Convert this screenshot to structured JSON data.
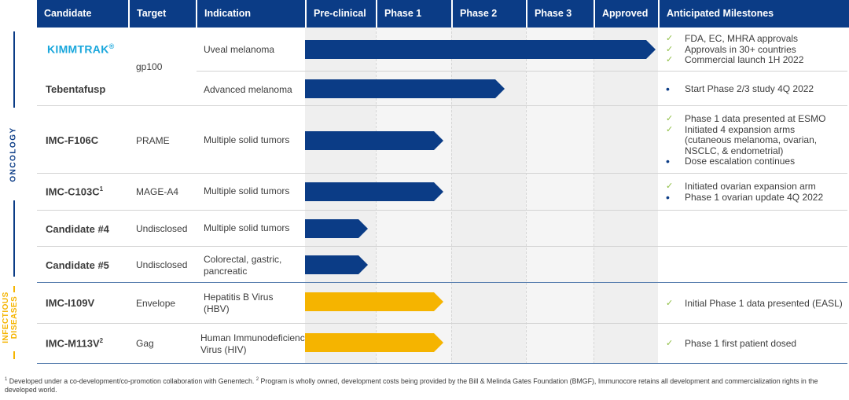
{
  "header": {
    "candidate": "Candidate",
    "target": "Target",
    "indication": "Indication",
    "preclinical": "Pre-clinical",
    "phase1": "Phase 1",
    "phase2": "Phase 2",
    "phase3": "Phase 3",
    "approved": "Approved",
    "milestones": "Anticipated Milestones"
  },
  "sections": {
    "oncology": "ONCOLOGY",
    "infectious_line1": "INFECTIOUS",
    "infectious_line2": "DISEASES"
  },
  "colors": {
    "header_bg": "#0b3c86",
    "oncology_bar": "#0b3c86",
    "infectious_bar": "#f5b400",
    "kimmtrak": "#1aa7dc",
    "check": "#8cbd3f",
    "infectious_label": "#f5b400"
  },
  "rows": [
    {
      "candidate": "KIMMTRAK",
      "candidate_mark": "®",
      "target": "gp100",
      "indication": "Uveal melanoma",
      "stage": "Approved",
      "milestones": [
        {
          "mark": "check-icon",
          "text": "FDA, EC, MHRA approvals"
        },
        {
          "mark": "check-icon",
          "text": "Approvals in 30+ countries"
        },
        {
          "mark": "check-icon",
          "text": "Commercial launch 1H 2022"
        }
      ]
    },
    {
      "candidate": "Tebentafusp",
      "target": "",
      "indication": "Advanced melanoma",
      "stage": "Phase 2",
      "milestones": [
        {
          "mark": "bullet-icon",
          "text": "Start Phase 2/3 study 4Q 2022"
        }
      ]
    },
    {
      "candidate": "IMC-F106C",
      "target": "PRAME",
      "indication": "Multiple solid tumors",
      "stage": "Phase 1",
      "milestones": [
        {
          "mark": "check-icon",
          "text": "Phase 1 data presented at ESMO"
        },
        {
          "mark": "check-icon",
          "text": "Initiated 4 expansion arms"
        },
        {
          "mark": "",
          "text": "(cutaneous melanoma, ovarian,"
        },
        {
          "mark": "",
          "text": "NSCLC, & endometrial)"
        },
        {
          "mark": "bullet-icon",
          "text": "Dose escalation continues"
        }
      ]
    },
    {
      "candidate": "IMC-C103C",
      "candidate_sup": "1",
      "target": "MAGE-A4",
      "indication": "Multiple solid tumors",
      "stage": "Phase 1",
      "milestones": [
        {
          "mark": "check-icon",
          "text": "Initiated ovarian expansion arm"
        },
        {
          "mark": "bullet-icon",
          "text": "Phase 1 ovarian update 4Q 2022"
        }
      ]
    },
    {
      "candidate": "Candidate #4",
      "target": "Undisclosed",
      "indication": "Multiple solid tumors",
      "stage": "Pre-clinical",
      "milestones": []
    },
    {
      "candidate": "Candidate #5",
      "target": "Undisclosed",
      "indication_lines": [
        "Colorectal, gastric,",
        "pancreatic"
      ],
      "stage": "Pre-clinical",
      "milestones": []
    },
    {
      "candidate": "IMC-I109V",
      "target": "Envelope",
      "indication_lines": [
        "Hepatitis B Virus",
        "(HBV)"
      ],
      "stage": "Phase 1",
      "milestones": [
        {
          "mark": "check-icon",
          "text": "Initial Phase 1 data presented (EASL)"
        }
      ]
    },
    {
      "candidate": "IMC-M113V",
      "candidate_sup": "2",
      "target": "Gag",
      "indication_lines": [
        "Human Immunodeficiency",
        "Virus (HIV)"
      ],
      "stage": "Phase 1",
      "milestones": [
        {
          "mark": "check-icon",
          "text": "Phase 1 first patient dosed"
        }
      ]
    }
  ],
  "footnote": {
    "sup1": "1",
    "text1": " Developed under a co-development/co-promotion collaboration with Genentech. ",
    "sup2": "2",
    "text2": " Program is wholly owned, development costs being provided by the Bill & Melinda Gates Foundation (BMGF), Immunocore retains all development and commercialization rights in the developed world."
  }
}
